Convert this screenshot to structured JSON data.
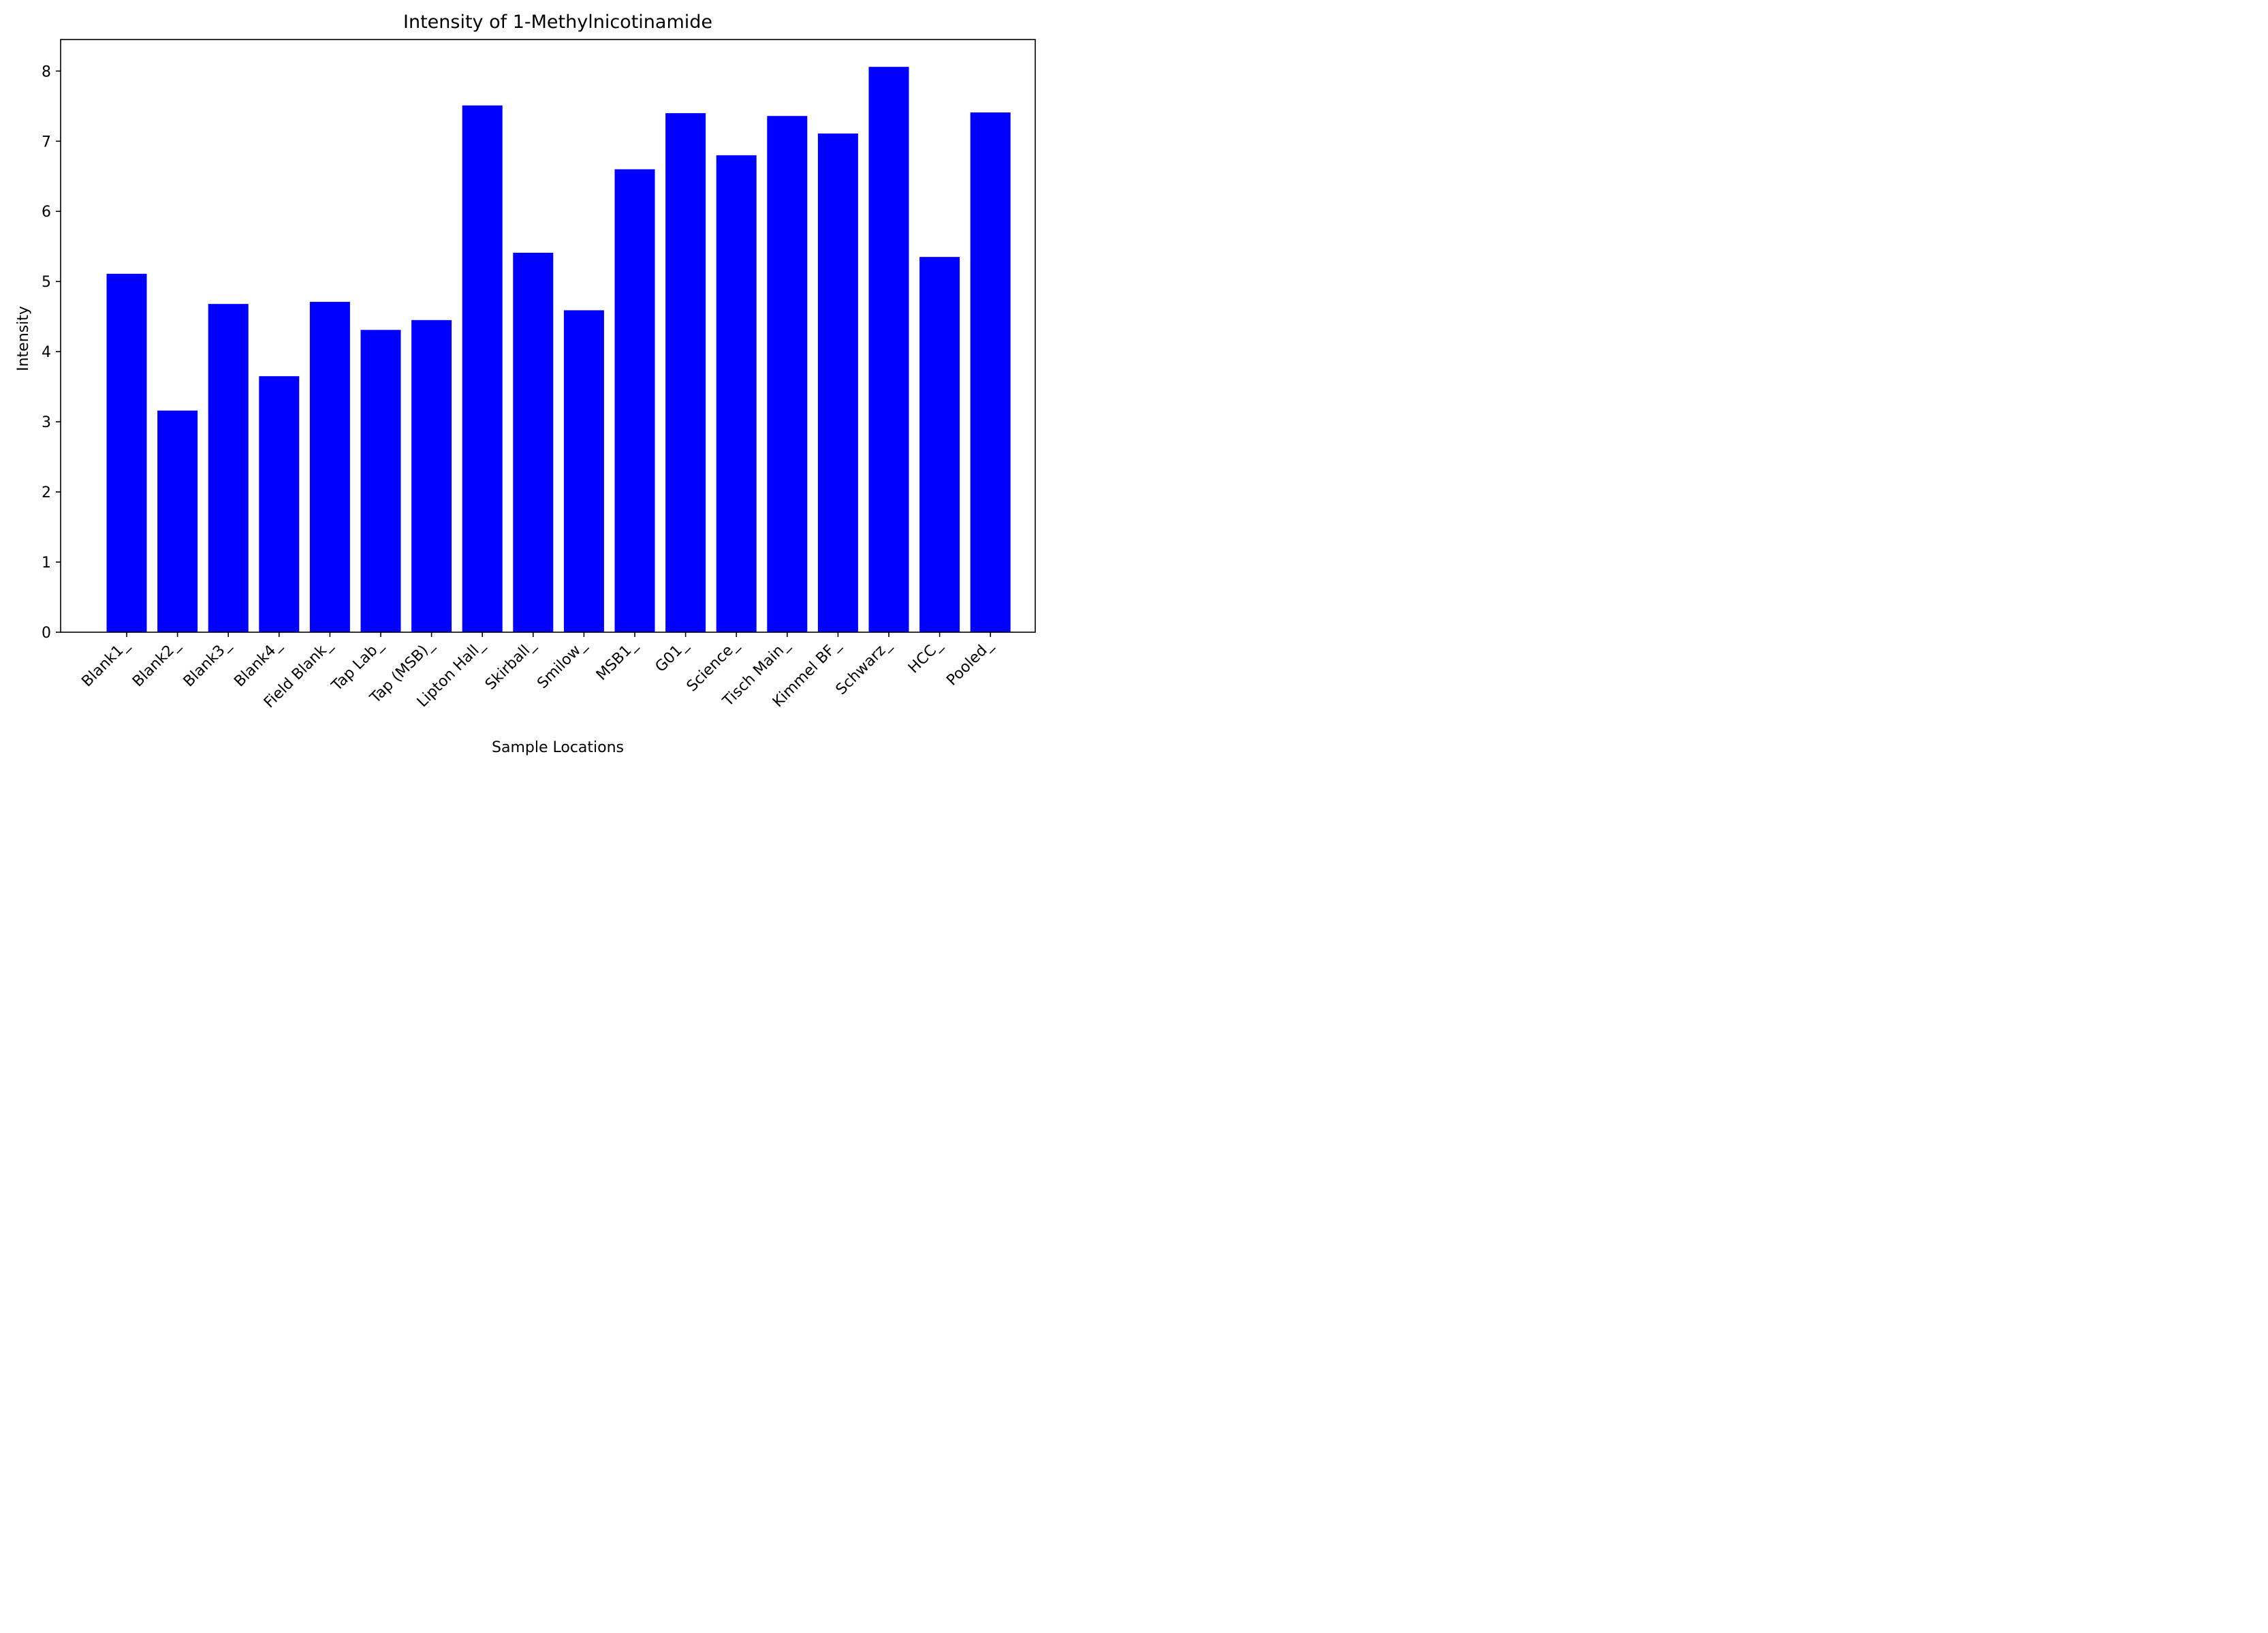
{
  "chart_data": {
    "type": "bar",
    "title": "Intensity of 1-Methylnicotinamide",
    "xlabel": "Sample Locations",
    "ylabel": "Intensity",
    "ylim": [
      0,
      8.45
    ],
    "yticks": [
      0,
      1,
      2,
      3,
      4,
      5,
      6,
      7,
      8
    ],
    "grid": false,
    "bar_color": "#0000ff",
    "categories": [
      "Blank1_",
      "Blank2_",
      "Blank3_",
      "Blank4_",
      "Field Blank_",
      "Tap Lab_",
      "Tap (MSB)_",
      "Lipton Hall_",
      "Skirball_",
      "Smilow_",
      "MSB1_",
      "G01_",
      "Science_",
      "Tisch Main_",
      "Kimmel BF_",
      "Schwarz_",
      "HCC_",
      "Pooled_"
    ],
    "values": [
      5.11,
      3.16,
      4.68,
      3.65,
      4.71,
      4.31,
      4.45,
      7.51,
      5.41,
      4.59,
      6.6,
      7.4,
      6.8,
      7.36,
      7.11,
      8.06,
      5.35,
      7.41
    ]
  }
}
